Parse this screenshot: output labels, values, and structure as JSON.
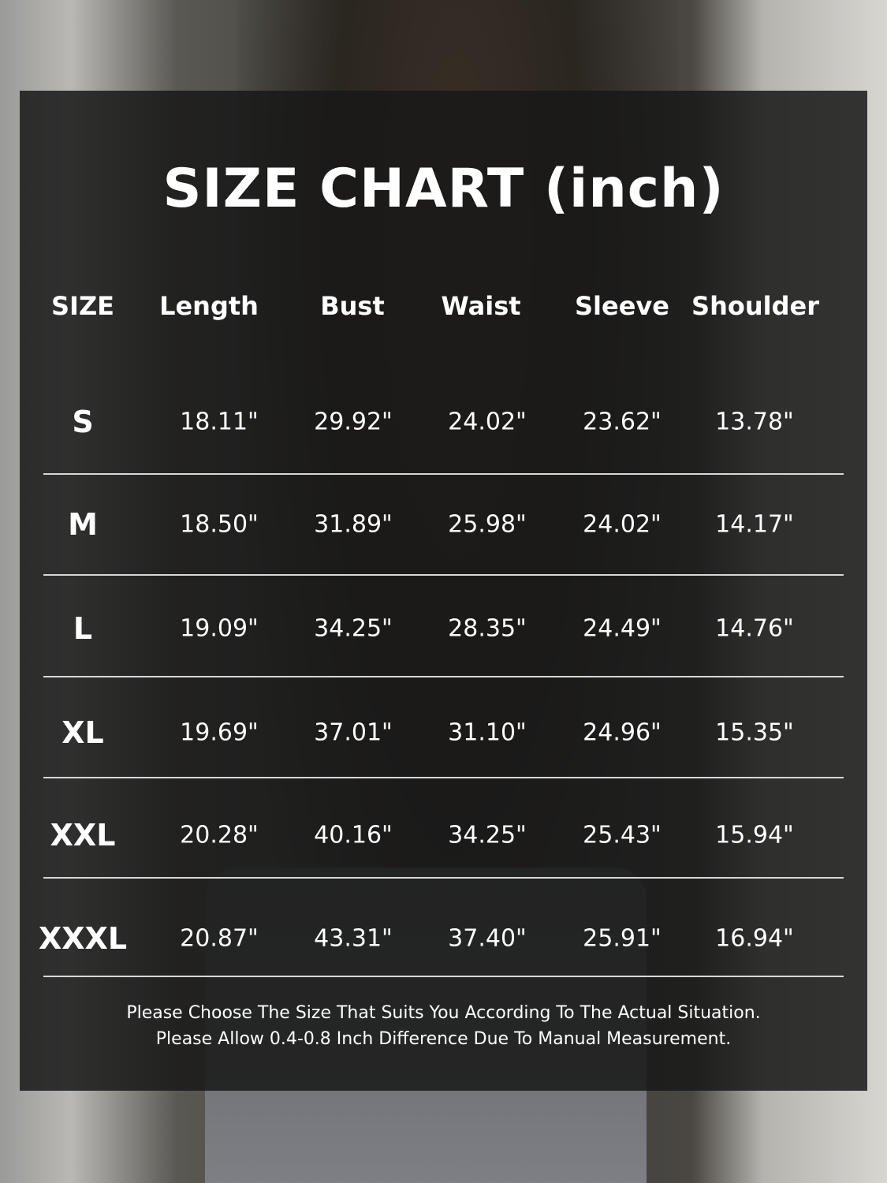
{
  "title": "SIZE CHART (inch)",
  "columns": [
    "SIZE",
    "Length",
    "Bust",
    "Waist",
    "Sleeve",
    "Shoulder"
  ],
  "rows": [
    {
      "size": "S",
      "values": [
        "18.11\"",
        "29.92\"",
        "24.02\"",
        "23.62\"",
        "13.78\""
      ]
    },
    {
      "size": "M",
      "values": [
        "18.50\"",
        "31.89\"",
        "25.98\"",
        "24.02\"",
        "14.17\""
      ]
    },
    {
      "size": "L",
      "values": [
        "19.09\"",
        "34.25\"",
        "28.35\"",
        "24.49\"",
        "14.76\""
      ]
    },
    {
      "size": "XL",
      "values": [
        "19.69\"",
        "37.01\"",
        "31.10\"",
        "24.96\"",
        "15.35\""
      ]
    },
    {
      "size": "XXL",
      "values": [
        "20.28\"",
        "40.16\"",
        "34.25\"",
        "25.43\"",
        "15.94\""
      ]
    },
    {
      "size": "XXXL",
      "values": [
        "20.87\"",
        "43.31\"",
        "37.40\"",
        "25.91\"",
        "16.94\""
      ]
    }
  ],
  "notes": [
    "Please Choose The Size That Suits You According To The Actual Situation.",
    "Please Allow 0.4-0.8 Inch Difference Due To Manual Measurement."
  ]
}
